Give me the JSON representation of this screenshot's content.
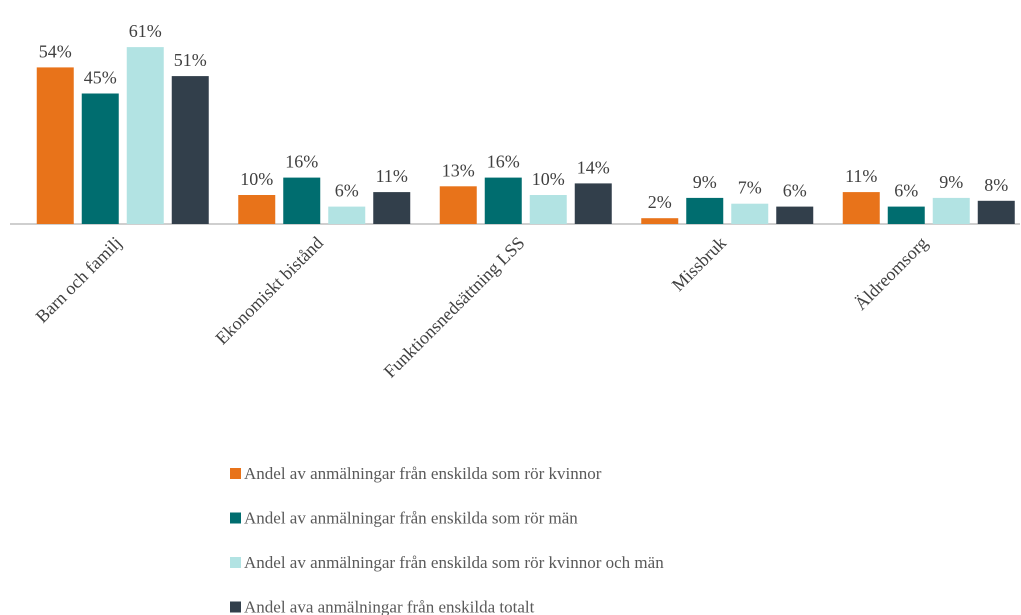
{
  "chart_data": {
    "type": "bar",
    "categories": [
      "Barn och familj",
      "Ekonomiskt bistånd",
      "Funktionsnedsättning LSS",
      "Missbruk",
      "Äldreomsorg"
    ],
    "series": [
      {
        "name": "Andel av anmälningar från enskilda som rör kvinnor",
        "color": "#e8731a",
        "values": [
          54,
          10,
          13,
          2,
          11
        ],
        "value_labels": [
          "54%",
          "10%",
          "13%",
          "2%",
          "11%"
        ]
      },
      {
        "name": "Andel av anmälningar från enskilda som rör män",
        "color": "#006d6f",
        "values": [
          45,
          16,
          16,
          9,
          6
        ],
        "value_labels": [
          "45%",
          "16%",
          "16%",
          "9%",
          "6%"
        ]
      },
      {
        "name": "Andel av anmälningar från enskilda som rör kvinnor och män",
        "color": "#b2e3e3",
        "values": [
          61,
          6,
          10,
          7,
          9
        ],
        "value_labels": [
          "61%",
          "6%",
          "10%",
          "7%",
          "9%"
        ]
      },
      {
        "name": "Andel ava anmälningar från enskilda totalt",
        "color": "#323f4b",
        "values": [
          51,
          11,
          14,
          6,
          8
        ],
        "value_labels": [
          "51%",
          "11%",
          "14%",
          "6%",
          "8%"
        ]
      }
    ],
    "legend": "bottom"
  }
}
